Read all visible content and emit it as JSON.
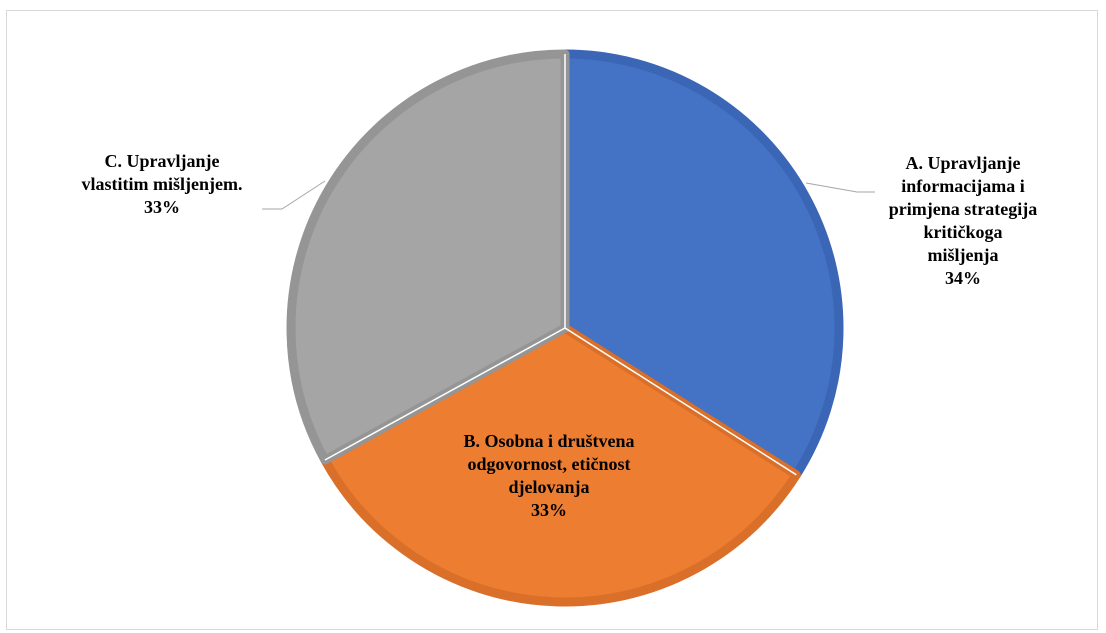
{
  "chart_data": {
    "type": "pie",
    "title": "",
    "slices": [
      {
        "label_lines": [
          "A. Upravljanje",
          "informacijama i",
          "primjena strategija",
          "kritičkoga",
          "mišljenja"
        ],
        "percent_label": "34%",
        "value": 34,
        "color": "#4472C4",
        "border_color": "#3A66B5"
      },
      {
        "label_lines": [
          "B. Osobna i društvena",
          "odgovornost, etičnost",
          "djelovanja"
        ],
        "percent_label": "33%",
        "value": 33,
        "color": "#ED7D31",
        "border_color": "#D96F28"
      },
      {
        "label_lines": [
          "C. Upravljanje",
          "vlastitim mišljenjem."
        ],
        "percent_label": "33%",
        "value": 33,
        "color": "#A5A5A5",
        "border_color": "#959595"
      }
    ],
    "legend": "none",
    "data_labels": "label and percentage"
  }
}
